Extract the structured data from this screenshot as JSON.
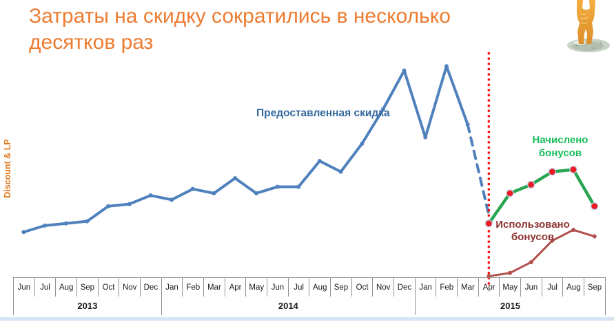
{
  "title": {
    "line1": "Затраты на скидку сократились в несколько",
    "line2": "десятков раз",
    "color": "#ED7B30"
  },
  "y_axis_label": "Discount & LP",
  "chart_data": {
    "type": "line",
    "title": "Затраты на скидку сократились в несколько десятков раз",
    "xlabel": "",
    "ylabel": "Discount & LP",
    "ylim": [
      0,
      100
    ],
    "grid": false,
    "legend_position": "inline-labels",
    "months": [
      "Jun",
      "Jul",
      "Aug",
      "Sep",
      "Oct",
      "Nov",
      "Dec",
      "Jan",
      "Feb",
      "Mar",
      "Apr",
      "May",
      "Jun",
      "Jul",
      "Aug",
      "Sep",
      "Oct",
      "Nov",
      "Dec",
      "Jan",
      "Feb",
      "Mar",
      "Apr",
      "May",
      "Jun",
      "Jul",
      "Aug",
      "Sep"
    ],
    "year_groups": [
      {
        "label": "2013",
        "span": 7
      },
      {
        "label": "2014",
        "span": 12
      },
      {
        "label": "2015",
        "span": 9
      }
    ],
    "series": [
      {
        "name": "Предоставленная скидка",
        "color": "#4F81BD",
        "label_color": "#34699E",
        "start_index": 0,
        "first_month": "Jun 2013",
        "last_month": "Mar 2015",
        "values": [
          21,
          24,
          25,
          26,
          33,
          34,
          38,
          36,
          41,
          39,
          46,
          39,
          42,
          42,
          54,
          49,
          62,
          78,
          96,
          65,
          98,
          71
        ],
        "line_width": 4,
        "marker": {
          "r": 3,
          "fill": "#4F81BD"
        },
        "projection": {
          "style": "dashed",
          "start_index": 21,
          "values": [
            71,
            29
          ]
        }
      },
      {
        "name": "Начислено бонусов",
        "color": "#27A550",
        "label_color": "#17BD5B",
        "start_index": 22,
        "first_month": "Apr 2015",
        "last_month": "Sep 2015",
        "values": [
          25,
          39,
          43,
          49,
          50,
          33
        ],
        "line_width": 4.5,
        "marker": {
          "r": 5,
          "fill": "#EC1C24",
          "stroke": "#BCCFE8"
        }
      },
      {
        "name": "Использовано бонусов",
        "color": "#B0504C",
        "label_color": "#8C3431",
        "start_index": 22,
        "first_month": "Apr 2015",
        "last_month": "Sep 2015",
        "values": [
          0.5,
          2,
          7,
          17,
          22,
          19
        ],
        "line_width": 3,
        "marker": {
          "r": 3,
          "fill": "#B0504C"
        }
      }
    ],
    "annotation_vline": {
      "month": "Apr 2015",
      "x_index": 22,
      "color": "#FF0000",
      "style": "dotted"
    }
  }
}
